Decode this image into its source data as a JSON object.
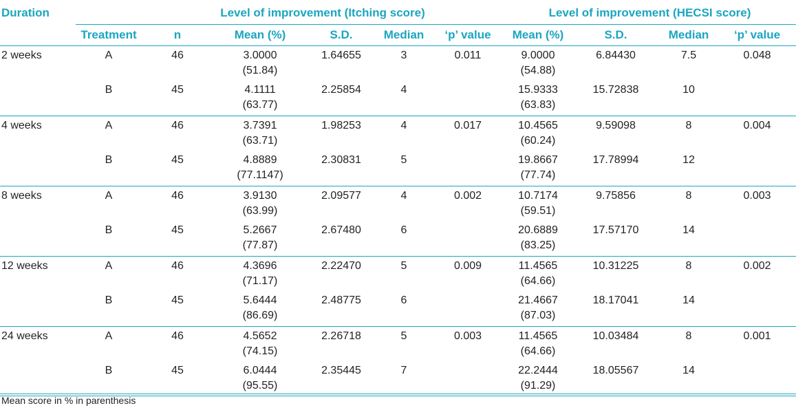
{
  "header": {
    "duration": "Duration",
    "group_itching": "Level of improvement (Itching score)",
    "group_hecsi": "Level of improvement (HECSI score)",
    "treatment": "Treatment",
    "n": "n",
    "mean_itch": "Mean (%)",
    "sd_itch": "S.D.",
    "median_itch": "Median",
    "p_itch": "‘p’ value",
    "mean_hecsi": "Mean (%)",
    "sd_hecsi": "S.D.",
    "median_hecsi": "Median",
    "p_hecsi": "‘p’ value"
  },
  "rows": [
    {
      "duration": "2 weeks",
      "treatment": "A",
      "n": "46",
      "mean_itch": "3.0000",
      "pct_itch": "(51.84)",
      "sd_itch": "1.64655",
      "median_itch": "3",
      "p_itch": "0.011",
      "mean_hecsi": "9.0000",
      "pct_hecsi": "(54.88)",
      "sd_hecsi": "6.84430",
      "median_hecsi": "7.5",
      "p_hecsi": "0.048"
    },
    {
      "duration": "",
      "treatment": "B",
      "n": "45",
      "mean_itch": "4.1111",
      "pct_itch": "(63.77)",
      "sd_itch": "2.25854",
      "median_itch": "4",
      "p_itch": "",
      "mean_hecsi": "15.9333",
      "pct_hecsi": "(63.83)",
      "sd_hecsi": "15.72838",
      "median_hecsi": "10",
      "p_hecsi": ""
    },
    {
      "duration": "4 weeks",
      "treatment": "A",
      "n": "46",
      "mean_itch": "3.7391",
      "pct_itch": "(63.71)",
      "sd_itch": "1.98253",
      "median_itch": "4",
      "p_itch": "0.017",
      "mean_hecsi": "10.4565",
      "pct_hecsi": "(60.24)",
      "sd_hecsi": "9.59098",
      "median_hecsi": "8",
      "p_hecsi": "0.004"
    },
    {
      "duration": "",
      "treatment": "B",
      "n": "45",
      "mean_itch": "4.8889",
      "pct_itch": "(77.1147)",
      "sd_itch": "2.30831",
      "median_itch": "5",
      "p_itch": "",
      "mean_hecsi": "19.8667",
      "pct_hecsi": "(77.74)",
      "sd_hecsi": "17.78994",
      "median_hecsi": "12",
      "p_hecsi": ""
    },
    {
      "duration": "8 weeks",
      "treatment": "A",
      "n": "46",
      "mean_itch": "3.9130",
      "pct_itch": "(63.99)",
      "sd_itch": "2.09577",
      "median_itch": "4",
      "p_itch": "0.002",
      "mean_hecsi": "10.7174",
      "pct_hecsi": "(59.51)",
      "sd_hecsi": "9.75856",
      "median_hecsi": "8",
      "p_hecsi": "0.003"
    },
    {
      "duration": "",
      "treatment": "B",
      "n": "45",
      "mean_itch": "5.2667",
      "pct_itch": "(77.87)",
      "sd_itch": "2.67480",
      "median_itch": "6",
      "p_itch": "",
      "mean_hecsi": "20.6889",
      "pct_hecsi": "(83.25)",
      "sd_hecsi": "17.57170",
      "median_hecsi": "14",
      "p_hecsi": ""
    },
    {
      "duration": "12 weeks",
      "treatment": "A",
      "n": "46",
      "mean_itch": "4.3696",
      "pct_itch": "(71.17)",
      "sd_itch": "2.22470",
      "median_itch": "5",
      "p_itch": "0.009",
      "mean_hecsi": "11.4565",
      "pct_hecsi": "(64.66)",
      "sd_hecsi": "10.31225",
      "median_hecsi": "8",
      "p_hecsi": "0.002"
    },
    {
      "duration": "",
      "treatment": "B",
      "n": "45",
      "mean_itch": "5.6444",
      "pct_itch": "(86.69)",
      "sd_itch": "2.48775",
      "median_itch": "6",
      "p_itch": "",
      "mean_hecsi": "21.4667",
      "pct_hecsi": "(87.03)",
      "sd_hecsi": "18.17041",
      "median_hecsi": "14",
      "p_hecsi": ""
    },
    {
      "duration": "24 weeks",
      "treatment": "A",
      "n": "46",
      "mean_itch": "4.5652",
      "pct_itch": "(74.15)",
      "sd_itch": "2.26718",
      "median_itch": "5",
      "p_itch": "0.003",
      "mean_hecsi": "11.4565",
      "pct_hecsi": "(64.66)",
      "sd_hecsi": "10.03484",
      "median_hecsi": "8",
      "p_hecsi": "0.001"
    },
    {
      "duration": "",
      "treatment": "B",
      "n": "45",
      "mean_itch": "6.0444",
      "pct_itch": "(95.55)",
      "sd_itch": "2.35445",
      "median_itch": "7",
      "p_itch": "",
      "mean_hecsi": "22.2444",
      "pct_hecsi": "(91.29)",
      "sd_hecsi": "18.05567",
      "median_hecsi": "14",
      "p_hecsi": ""
    }
  ],
  "footnote": "Mean score in % in parenthesis",
  "colors": {
    "accent": "#1aa6bf",
    "text": "#231f20"
  }
}
